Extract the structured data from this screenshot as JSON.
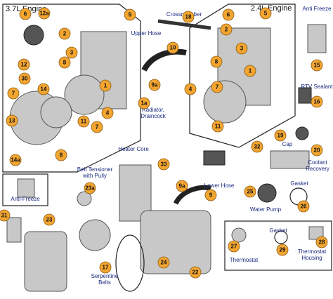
{
  "sections": [
    {
      "title": "3.7L Engine"
    },
    {
      "title": "2.4L Engine"
    }
  ],
  "labels": [
    "Crossmember",
    "Upper Hose",
    "Anti Freeze",
    "RTV Sealant",
    "Radiator, Draincock",
    "Heater Core",
    "Belt Tensioner with Pully",
    "Anti-Freeze",
    "Lower Hose",
    "Cap",
    "Coolant Recovery",
    "Gasket",
    "Water Pump",
    "Gasket",
    "Thermostat",
    "Thermostat Housing",
    "Serpentine Belts"
  ],
  "callouts": [
    "6",
    "12a",
    "5",
    "2",
    "3",
    "8",
    "12",
    "30",
    "14",
    "1",
    "7",
    "4",
    "7",
    "11",
    "13",
    "8",
    "14a",
    "18",
    "10",
    "9a",
    "1a",
    "33",
    "23a",
    "9a",
    "9",
    "31",
    "23",
    "17",
    "24",
    "22",
    "32",
    "6",
    "5",
    "2",
    "3",
    "8",
    "1",
    "4",
    "7",
    "11",
    "15",
    "16",
    "19",
    "20",
    "25",
    "26",
    "27",
    "29",
    "28"
  ]
}
